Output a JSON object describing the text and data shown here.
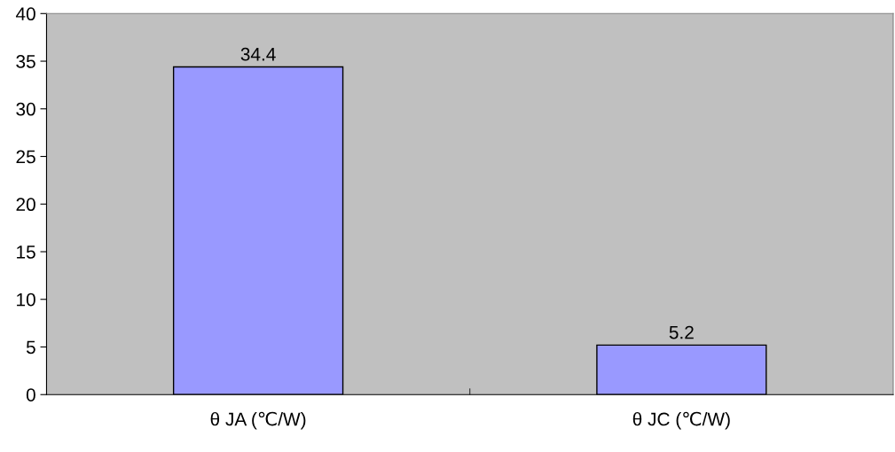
{
  "chart_data": {
    "type": "bar",
    "categories": [
      "θ JA (℃/W)",
      "θ JC (℃/W)"
    ],
    "values": [
      34.4,
      5.2
    ],
    "color": "#9999ff",
    "data_labels": true,
    "ylim": [
      0,
      40
    ],
    "yticks": [
      0,
      5,
      10,
      15,
      20,
      25,
      30,
      35,
      40
    ],
    "grid": false,
    "legend": false
  }
}
